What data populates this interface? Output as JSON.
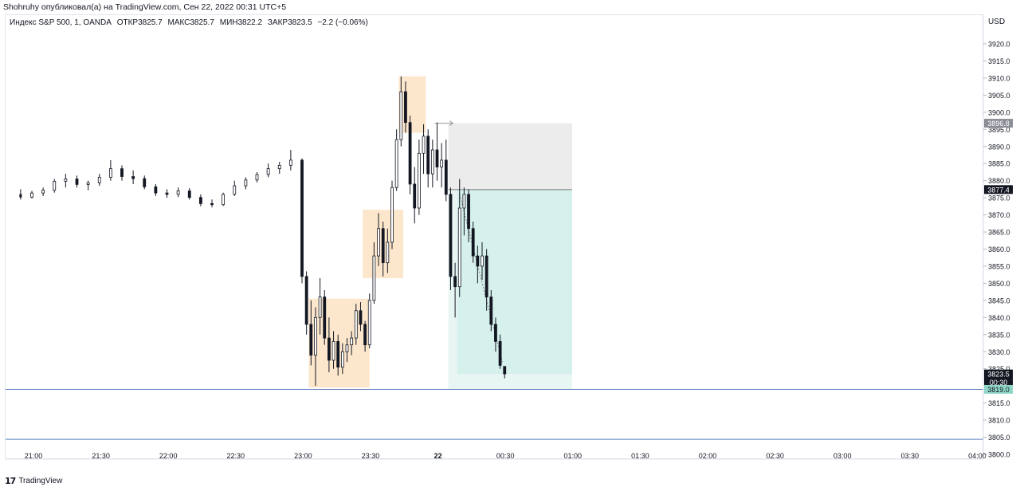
{
  "header": {
    "publish_line": "Shohruhy опубликовал(а) на TradingView.com, Сен 22, 2022 00:31 UTC+5"
  },
  "legend": {
    "symbol": "Индекс S&P 500, 1, OANDA",
    "open": "ОТКР3825.7",
    "high": "МАКС3825.7",
    "low": "МИН3822.2",
    "close": "ЗАКР3823.5",
    "change": "−2.2 (−0.06%)"
  },
  "price_scale": {
    "currency": "USD"
  },
  "footer": {
    "logo_mark": "𝟭𝟳",
    "brand": "TradingView"
  },
  "colors": {
    "up_candle": "#ffffff",
    "down_candle": "#131722",
    "wick": "#131722",
    "highlight_zone": "#fde7cc",
    "stop_zone": "#ececec",
    "target_zone": "#d6f0ec",
    "target_zone_light": "#e8f6f3",
    "horizontal_line": "#5b7fbd",
    "label_dark": "#131722",
    "label_gray": "#8a8d96",
    "label_green": "#8fd6c6"
  },
  "chart_data": {
    "type": "candlestick",
    "interval": "1",
    "ylim": [
      3800,
      3925
    ],
    "y_ticks": [
      "3920.0",
      "3915.0",
      "3910.0",
      "3905.0",
      "3900.0",
      "3895.0",
      "3890.0",
      "3885.0",
      "3880.0",
      "3875.0",
      "3870.0",
      "3865.0",
      "3860.0",
      "3855.0",
      "3850.0",
      "3845.0",
      "3840.0",
      "3835.0",
      "3830.0",
      "3825.0",
      "3815.0",
      "3810.0",
      "3805.0",
      "3800.0"
    ],
    "x_ticks": [
      "21:00",
      "21:30",
      "22:00",
      "22:30",
      "23:00",
      "23:30",
      "22",
      "00:30",
      "01:00",
      "01:30",
      "02:00",
      "02:30",
      "03:00",
      "03:30",
      "04:00"
    ],
    "time_start": "20:55",
    "time_end": "00:31",
    "series": [
      {
        "t": "20:55",
        "o": 3876.0,
        "h": 3877.5,
        "l": 3874.5,
        "c": 3875.2
      },
      {
        "t": "21:00",
        "o": 3875.2,
        "h": 3877.0,
        "l": 3874.8,
        "c": 3876.4
      },
      {
        "t": "21:05",
        "o": 3876.4,
        "h": 3878.0,
        "l": 3875.5,
        "c": 3877.2
      },
      {
        "t": "21:10",
        "o": 3877.2,
        "h": 3880.5,
        "l": 3876.5,
        "c": 3879.8
      },
      {
        "t": "21:15",
        "o": 3879.8,
        "h": 3882.0,
        "l": 3878.0,
        "c": 3880.5
      },
      {
        "t": "21:20",
        "o": 3880.5,
        "h": 3881.5,
        "l": 3878.0,
        "c": 3878.9
      },
      {
        "t": "21:25",
        "o": 3878.9,
        "h": 3880.0,
        "l": 3877.2,
        "c": 3879.4
      },
      {
        "t": "21:30",
        "o": 3879.4,
        "h": 3882.0,
        "l": 3878.5,
        "c": 3881.0
      },
      {
        "t": "21:35",
        "o": 3881.0,
        "h": 3886.0,
        "l": 3880.0,
        "c": 3883.5
      },
      {
        "t": "21:40",
        "o": 3883.5,
        "h": 3884.5,
        "l": 3880.0,
        "c": 3881.2
      },
      {
        "t": "21:45",
        "o": 3881.2,
        "h": 3883.0,
        "l": 3879.0,
        "c": 3880.6
      },
      {
        "t": "21:50",
        "o": 3880.6,
        "h": 3881.5,
        "l": 3877.5,
        "c": 3878.2
      },
      {
        "t": "21:55",
        "o": 3878.2,
        "h": 3879.0,
        "l": 3875.5,
        "c": 3876.4
      },
      {
        "t": "22:00",
        "o": 3876.4,
        "h": 3877.5,
        "l": 3875.0,
        "c": 3876.0
      },
      {
        "t": "22:05",
        "o": 3876.0,
        "h": 3878.0,
        "l": 3875.2,
        "c": 3877.0
      },
      {
        "t": "22:10",
        "o": 3877.0,
        "h": 3877.8,
        "l": 3874.5,
        "c": 3875.1
      },
      {
        "t": "22:15",
        "o": 3875.1,
        "h": 3876.0,
        "l": 3872.5,
        "c": 3873.3
      },
      {
        "t": "22:20",
        "o": 3873.3,
        "h": 3874.5,
        "l": 3872.2,
        "c": 3873.0
      },
      {
        "t": "22:25",
        "o": 3873.0,
        "h": 3876.5,
        "l": 3872.6,
        "c": 3876.0
      },
      {
        "t": "22:30",
        "o": 3876.0,
        "h": 3880.0,
        "l": 3875.5,
        "c": 3878.5
      },
      {
        "t": "22:35",
        "o": 3878.5,
        "h": 3881.0,
        "l": 3877.5,
        "c": 3880.2
      },
      {
        "t": "22:40",
        "o": 3880.2,
        "h": 3882.5,
        "l": 3879.5,
        "c": 3881.8
      },
      {
        "t": "22:45",
        "o": 3881.8,
        "h": 3885.0,
        "l": 3881.0,
        "c": 3883.5
      },
      {
        "t": "22:50",
        "o": 3883.5,
        "h": 3885.5,
        "l": 3882.0,
        "c": 3884.5
      },
      {
        "t": "22:55",
        "o": 3884.5,
        "h": 3889.0,
        "l": 3883.0,
        "c": 3886.0
      },
      {
        "t": "23:00",
        "o": 3886.0,
        "h": 3886.5,
        "l": 3850.0,
        "c": 3852.0
      },
      {
        "t": "23:02",
        "o": 3852.0,
        "h": 3853.5,
        "l": 3835.0,
        "c": 3838.0
      },
      {
        "t": "23:04",
        "o": 3838.0,
        "h": 3845.0,
        "l": 3826.0,
        "c": 3829.0
      },
      {
        "t": "23:06",
        "o": 3829.0,
        "h": 3843.0,
        "l": 3820.0,
        "c": 3840.0
      },
      {
        "t": "23:08",
        "o": 3840.0,
        "h": 3851.5,
        "l": 3835.0,
        "c": 3846.0
      },
      {
        "t": "23:10",
        "o": 3846.0,
        "h": 3848.0,
        "l": 3832.0,
        "c": 3834.0
      },
      {
        "t": "23:12",
        "o": 3834.0,
        "h": 3840.0,
        "l": 3824.0,
        "c": 3827.5
      },
      {
        "t": "23:14",
        "o": 3827.5,
        "h": 3836.0,
        "l": 3825.0,
        "c": 3833.0
      },
      {
        "t": "23:16",
        "o": 3833.0,
        "h": 3835.0,
        "l": 3823.0,
        "c": 3825.5
      },
      {
        "t": "23:18",
        "o": 3825.5,
        "h": 3832.5,
        "l": 3823.5,
        "c": 3830.0
      },
      {
        "t": "23:20",
        "o": 3830.0,
        "h": 3834.0,
        "l": 3827.0,
        "c": 3832.0
      },
      {
        "t": "23:22",
        "o": 3832.0,
        "h": 3836.0,
        "l": 3829.0,
        "c": 3834.0
      },
      {
        "t": "23:24",
        "o": 3834.0,
        "h": 3844.0,
        "l": 3832.0,
        "c": 3842.0
      },
      {
        "t": "23:26",
        "o": 3842.0,
        "h": 3844.5,
        "l": 3836.0,
        "c": 3838.0
      },
      {
        "t": "23:28",
        "o": 3838.0,
        "h": 3839.0,
        "l": 3830.0,
        "c": 3832.0
      },
      {
        "t": "23:30",
        "o": 3832.0,
        "h": 3847.0,
        "l": 3831.0,
        "c": 3845.0
      },
      {
        "t": "23:32",
        "o": 3845.0,
        "h": 3862.0,
        "l": 3844.0,
        "c": 3858.0
      },
      {
        "t": "23:34",
        "o": 3858.0,
        "h": 3870.5,
        "l": 3855.0,
        "c": 3866.0
      },
      {
        "t": "23:36",
        "o": 3866.0,
        "h": 3868.0,
        "l": 3852.0,
        "c": 3856.0
      },
      {
        "t": "23:38",
        "o": 3856.0,
        "h": 3866.0,
        "l": 3853.0,
        "c": 3862.0
      },
      {
        "t": "23:40",
        "o": 3862.0,
        "h": 3880.0,
        "l": 3860.0,
        "c": 3878.0
      },
      {
        "t": "23:42",
        "o": 3878.0,
        "h": 3895.0,
        "l": 3877.0,
        "c": 3892.0
      },
      {
        "t": "23:44",
        "o": 3892.0,
        "h": 3910.5,
        "l": 3890.0,
        "c": 3906.0
      },
      {
        "t": "23:46",
        "o": 3906.0,
        "h": 3909.0,
        "l": 3894.0,
        "c": 3897.0
      },
      {
        "t": "23:48",
        "o": 3897.0,
        "h": 3899.0,
        "l": 3876.0,
        "c": 3879.0
      },
      {
        "t": "23:50",
        "o": 3879.0,
        "h": 3884.0,
        "l": 3867.5,
        "c": 3872.0
      },
      {
        "t": "23:52",
        "o": 3872.0,
        "h": 3892.0,
        "l": 3870.0,
        "c": 3888.0
      },
      {
        "t": "23:54",
        "o": 3888.0,
        "h": 3896.5,
        "l": 3882.0,
        "c": 3893.0
      },
      {
        "t": "23:56",
        "o": 3893.0,
        "h": 3895.0,
        "l": 3878.0,
        "c": 3882.0
      },
      {
        "t": "23:58",
        "o": 3882.0,
        "h": 3892.0,
        "l": 3878.0,
        "c": 3889.0
      },
      {
        "t": "00:00",
        "o": 3889.0,
        "h": 3897.0,
        "l": 3880.0,
        "c": 3884.0
      },
      {
        "t": "00:02",
        "o": 3884.0,
        "h": 3891.0,
        "l": 3878.0,
        "c": 3886.0
      },
      {
        "t": "00:04",
        "o": 3886.0,
        "h": 3892.0,
        "l": 3874.0,
        "c": 3876.0
      },
      {
        "t": "00:06",
        "o": 3876.0,
        "h": 3878.0,
        "l": 3848.0,
        "c": 3852.0
      },
      {
        "t": "00:08",
        "o": 3852.0,
        "h": 3856.0,
        "l": 3840.0,
        "c": 3849.0
      },
      {
        "t": "00:10",
        "o": 3849.0,
        "h": 3880.5,
        "l": 3846.0,
        "c": 3872.0
      },
      {
        "t": "00:12",
        "o": 3872.0,
        "h": 3878.0,
        "l": 3864.0,
        "c": 3876.0
      },
      {
        "t": "00:14",
        "o": 3876.0,
        "h": 3877.5,
        "l": 3862.0,
        "c": 3866.0
      },
      {
        "t": "00:16",
        "o": 3866.0,
        "h": 3868.0,
        "l": 3856.0,
        "c": 3858.0
      },
      {
        "t": "00:18",
        "o": 3858.0,
        "h": 3861.0,
        "l": 3850.0,
        "c": 3855.0
      },
      {
        "t": "00:20",
        "o": 3855.0,
        "h": 3862.0,
        "l": 3851.0,
        "c": 3858.0
      },
      {
        "t": "00:22",
        "o": 3858.0,
        "h": 3860.0,
        "l": 3842.0,
        "c": 3846.0
      },
      {
        "t": "00:24",
        "o": 3846.0,
        "h": 3848.0,
        "l": 3836.0,
        "c": 3838.0
      },
      {
        "t": "00:26",
        "o": 3838.0,
        "h": 3840.0,
        "l": 3830.0,
        "c": 3833.0
      },
      {
        "t": "00:28",
        "o": 3833.0,
        "h": 3835.0,
        "l": 3825.0,
        "c": 3826.0
      },
      {
        "t": "00:30",
        "o": 3825.7,
        "h": 3825.7,
        "l": 3822.2,
        "c": 3823.5
      }
    ],
    "highlight_zones": [
      {
        "t0": "23:03",
        "t1": "23:30",
        "p0": 3819.5,
        "p1": 3845.5
      },
      {
        "t0": "23:27",
        "t1": "23:45",
        "p0": 3851.5,
        "p1": 3871.5
      },
      {
        "t0": "23:43",
        "t1": "23:55",
        "p0": 3894.0,
        "p1": 3910.5
      }
    ],
    "position_tool": {
      "entry": 3877.4,
      "stop": 3896.8,
      "target": 3819.0,
      "t0": "00:05",
      "t1": "01:00"
    },
    "horizontal_lines": [
      3819.0,
      3804.4
    ],
    "price_labels": [
      {
        "value": "3896.8",
        "price": 3896.8,
        "style": "gray"
      },
      {
        "value": "3877.4",
        "price": 3877.4,
        "style": "dark"
      },
      {
        "value": "3823.5",
        "price": 3823.5,
        "style": "dark",
        "sub": "00:30"
      },
      {
        "value": "3819.0",
        "price": 3819.0,
        "style": "green"
      }
    ]
  }
}
